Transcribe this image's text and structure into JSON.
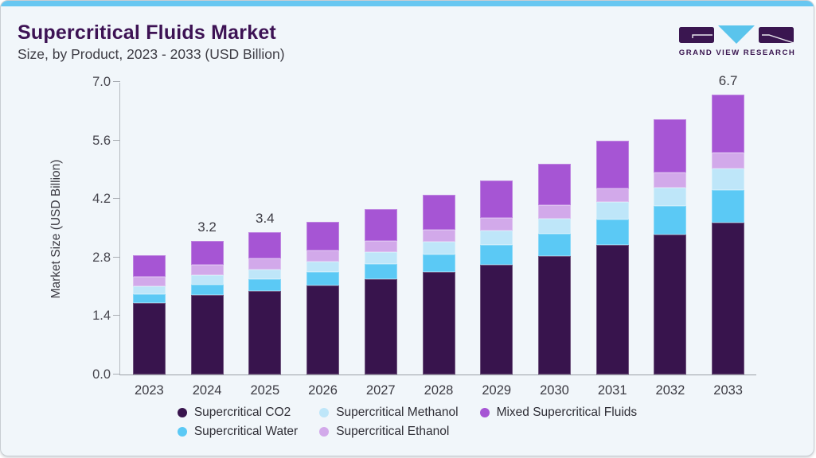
{
  "header": {
    "title": "Supercritical Fluids Market",
    "subtitle": "Size, by Product, 2023 - 2033 (USD Billion)",
    "logo_text": "GRAND VIEW RESEARCH"
  },
  "colors": {
    "accent_bar": "#68c7f1",
    "card_background": "#f1f6fa",
    "title_text": "#3d1254",
    "brand_purple": "#3a1650",
    "brand_blue": "#5ac4ec"
  },
  "chart_data": {
    "type": "bar",
    "stacked": true,
    "title": "Supercritical Fluids Market Size, by Product, 2023 - 2033 (USD Billion)",
    "xlabel": "",
    "ylabel": "Market Size (USD Billion)",
    "ylim": [
      0,
      7.0
    ],
    "yticks": [
      "0.0",
      "1.4",
      "2.8",
      "4.2",
      "5.6",
      "7.0"
    ],
    "grid": false,
    "legend_position": "bottom",
    "categories": [
      "2023",
      "2024",
      "2025",
      "2026",
      "2027",
      "2028",
      "2029",
      "2030",
      "2031",
      "2032",
      "2033"
    ],
    "series": [
      {
        "name": "Supercritical CO2",
        "color": "#38144d",
        "values": [
          1.71,
          1.9,
          2.0,
          2.13,
          2.28,
          2.46,
          2.63,
          2.83,
          3.1,
          3.34,
          3.63
        ]
      },
      {
        "name": "Supercritical Water",
        "color": "#5bc9f5",
        "values": [
          0.21,
          0.25,
          0.28,
          0.32,
          0.36,
          0.41,
          0.47,
          0.53,
          0.61,
          0.69,
          0.79
        ]
      },
      {
        "name": "Supercritical Methanol",
        "color": "#bee6f9",
        "values": [
          0.2,
          0.23,
          0.24,
          0.26,
          0.29,
          0.31,
          0.34,
          0.37,
          0.41,
          0.45,
          0.5
        ]
      },
      {
        "name": "Supercritical Ethanol",
        "color": "#d2a9ea",
        "values": [
          0.22,
          0.24,
          0.25,
          0.26,
          0.27,
          0.29,
          0.3,
          0.32,
          0.34,
          0.36,
          0.38
        ]
      },
      {
        "name": "Mixed Supercritical Fluids",
        "color": "#a655d4",
        "values": [
          0.51,
          0.58,
          0.63,
          0.68,
          0.75,
          0.83,
          0.91,
          1.0,
          1.14,
          1.26,
          1.4
        ]
      }
    ],
    "totals": [
      2.85,
      3.2,
      3.4,
      3.65,
      3.95,
      4.3,
      4.65,
      5.05,
      5.6,
      6.1,
      6.7
    ],
    "bar_labels": {
      "2024": "3.2",
      "2025": "3.4",
      "2033": "6.7"
    },
    "legend_order": [
      0,
      2,
      4,
      1,
      3
    ]
  }
}
